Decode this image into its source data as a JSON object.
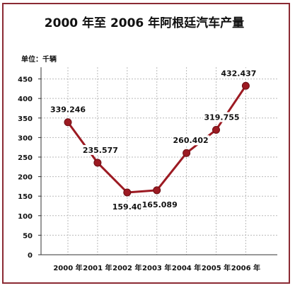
{
  "chart_data": {
    "type": "line",
    "title": "2000 年至 2006 年阿根廷汽车产量",
    "unit_label": "单位：千辆",
    "categories": [
      "2000 年",
      "2001 年",
      "2002 年",
      "2003 年",
      "2004 年",
      "2005 年",
      "2006 年"
    ],
    "values": [
      339.246,
      235.577,
      159.401,
      165.089,
      260.402,
      319.755,
      432.437
    ],
    "data_labels": [
      "339.246",
      "235.577",
      "159.401",
      "165.089",
      "260.402",
      "319.755",
      "432.437"
    ],
    "y_ticks": [
      0,
      50,
      100,
      150,
      200,
      250,
      300,
      350,
      400,
      450
    ],
    "ylim": [
      0,
      480
    ],
    "grid": true,
    "line_color": "#9c1a22",
    "frame_color": "#8b2a33",
    "grid_color": "#b9b9b9"
  }
}
